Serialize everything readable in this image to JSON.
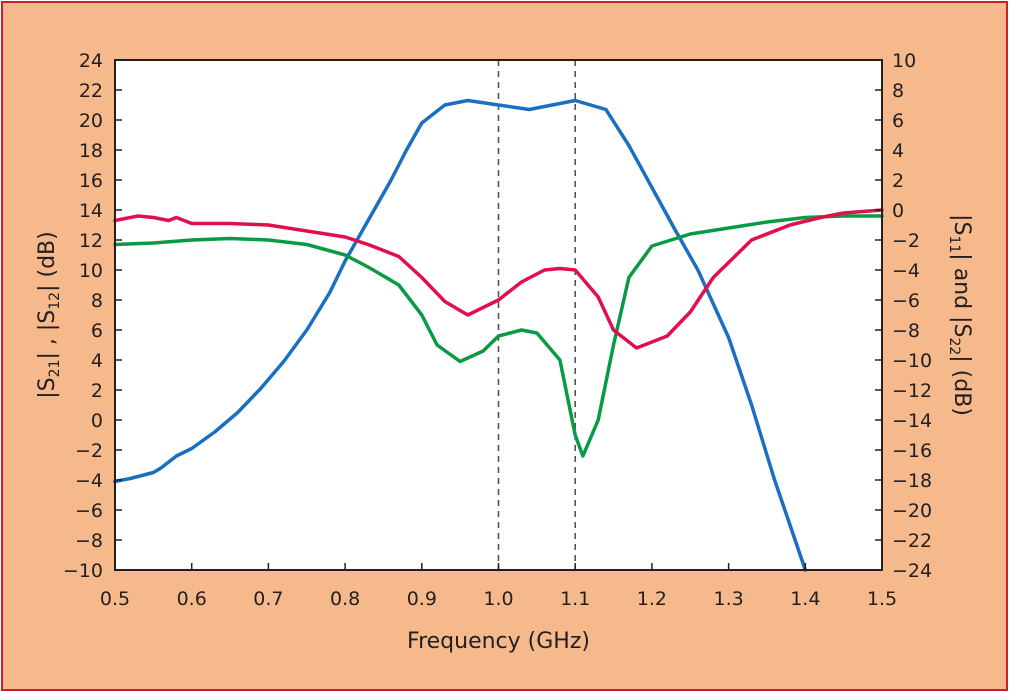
{
  "colors": {
    "background": "#f5b98c",
    "border": "#c8202f",
    "plot_background": "#ffffff",
    "axis": "#231f20",
    "marker_line": "#555555"
  },
  "chart_data": {
    "type": "line",
    "title": "",
    "xlabel": "Frequency (GHz)",
    "ylabel_left": {
      "parts": [
        "|S",
        "21",
        "| , |S",
        "12",
        "| (dB)"
      ]
    },
    "ylabel_right": {
      "parts": [
        "|S",
        "11",
        "| and |S",
        "22",
        "| (dB)"
      ]
    },
    "xlim": [
      0.5,
      1.5
    ],
    "ylim_left": [
      -10,
      24
    ],
    "ylim_right": [
      -24,
      10
    ],
    "x_ticks": [
      0.5,
      0.6,
      0.7,
      0.8,
      0.9,
      1.0,
      1.1,
      1.2,
      1.3,
      1.4,
      1.5
    ],
    "x_tick_labels": [
      "0.5",
      "0.6",
      "0.7",
      "0.8",
      "0.9",
      "1.0",
      "1.1",
      "1.2",
      "1.3",
      "1.4",
      "1.5"
    ],
    "y_left_ticks": [
      24,
      22,
      20,
      18,
      16,
      14,
      12,
      10,
      8,
      6,
      4,
      2,
      0,
      -2,
      -4,
      -6,
      -8,
      -10
    ],
    "y_left_tick_labels": [
      "24",
      "22",
      "20",
      "18",
      "16",
      "14",
      "12",
      "10",
      "8",
      "6",
      "4",
      "2",
      "0",
      "−2",
      "−4",
      "−6",
      "−8",
      "−10"
    ],
    "y_right_ticks": [
      10,
      8,
      6,
      4,
      2,
      0,
      -2,
      -4,
      -6,
      -8,
      -10,
      -12,
      -14,
      -16,
      -18,
      -20,
      -22,
      -24
    ],
    "y_right_tick_labels": [
      "10",
      "8",
      "6",
      "4",
      "2",
      "0",
      "−2",
      "−4",
      "−6",
      "−8",
      "−10",
      "−12",
      "−14",
      "−16",
      "−18",
      "−20",
      "−22",
      "−24"
    ],
    "grid": false,
    "vertical_markers": [
      1.0,
      1.1
    ],
    "series": [
      {
        "color": "#1a6fc0",
        "axis": "left",
        "points": [
          [
            0.5,
            -4.1
          ],
          [
            0.52,
            -3.9
          ],
          [
            0.55,
            -3.5
          ],
          [
            0.56,
            -3.2
          ],
          [
            0.58,
            -2.4
          ],
          [
            0.6,
            -1.9
          ],
          [
            0.63,
            -0.8
          ],
          [
            0.66,
            0.5
          ],
          [
            0.69,
            2.1
          ],
          [
            0.72,
            3.9
          ],
          [
            0.75,
            6.0
          ],
          [
            0.78,
            8.5
          ],
          [
            0.8,
            10.6
          ],
          [
            0.83,
            13.3
          ],
          [
            0.86,
            16.0
          ],
          [
            0.88,
            18.0
          ],
          [
            0.9,
            19.8
          ],
          [
            0.93,
            21.0
          ],
          [
            0.96,
            21.3
          ],
          [
            1.0,
            21.0
          ],
          [
            1.04,
            20.7
          ],
          [
            1.08,
            21.1
          ],
          [
            1.1,
            21.3
          ],
          [
            1.14,
            20.7
          ],
          [
            1.17,
            18.3
          ],
          [
            1.2,
            15.5
          ],
          [
            1.23,
            12.7
          ],
          [
            1.26,
            10.0
          ],
          [
            1.3,
            5.5
          ],
          [
            1.33,
            1.0
          ],
          [
            1.36,
            -4.0
          ],
          [
            1.38,
            -7.0
          ],
          [
            1.4,
            -10.0
          ]
        ]
      },
      {
        "color": "#0a9a45",
        "axis": "left",
        "points": [
          [
            0.5,
            11.7
          ],
          [
            0.55,
            11.8
          ],
          [
            0.6,
            12.0
          ],
          [
            0.65,
            12.1
          ],
          [
            0.7,
            12.0
          ],
          [
            0.75,
            11.7
          ],
          [
            0.8,
            11.0
          ],
          [
            0.83,
            10.2
          ],
          [
            0.87,
            9.0
          ],
          [
            0.9,
            7.0
          ],
          [
            0.92,
            5.0
          ],
          [
            0.95,
            3.9
          ],
          [
            0.98,
            4.6
          ],
          [
            1.0,
            5.6
          ],
          [
            1.03,
            6.0
          ],
          [
            1.05,
            5.8
          ],
          [
            1.08,
            4.0
          ],
          [
            1.1,
            -1.0
          ],
          [
            1.11,
            -2.4
          ],
          [
            1.13,
            0.0
          ],
          [
            1.15,
            5.0
          ],
          [
            1.17,
            9.5
          ],
          [
            1.2,
            11.6
          ],
          [
            1.25,
            12.4
          ],
          [
            1.3,
            12.8
          ],
          [
            1.35,
            13.2
          ],
          [
            1.4,
            13.5
          ],
          [
            1.45,
            13.6
          ],
          [
            1.5,
            13.6
          ]
        ]
      },
      {
        "color": "#e0104c",
        "axis": "right",
        "points": [
          [
            0.5,
            -0.7
          ],
          [
            0.53,
            -0.4
          ],
          [
            0.55,
            -0.5
          ],
          [
            0.57,
            -0.7
          ],
          [
            0.58,
            -0.5
          ],
          [
            0.6,
            -0.9
          ],
          [
            0.65,
            -0.9
          ],
          [
            0.7,
            -1.0
          ],
          [
            0.75,
            -1.4
          ],
          [
            0.8,
            -1.8
          ],
          [
            0.83,
            -2.3
          ],
          [
            0.87,
            -3.1
          ],
          [
            0.9,
            -4.5
          ],
          [
            0.93,
            -6.1
          ],
          [
            0.96,
            -7.0
          ],
          [
            1.0,
            -6.0
          ],
          [
            1.03,
            -4.8
          ],
          [
            1.06,
            -4.0
          ],
          [
            1.08,
            -3.9
          ],
          [
            1.1,
            -4.0
          ],
          [
            1.13,
            -5.8
          ],
          [
            1.15,
            -8.0
          ],
          [
            1.18,
            -9.2
          ],
          [
            1.22,
            -8.4
          ],
          [
            1.25,
            -6.8
          ],
          [
            1.28,
            -4.5
          ],
          [
            1.3,
            -3.5
          ],
          [
            1.33,
            -2.0
          ],
          [
            1.38,
            -1.0
          ],
          [
            1.42,
            -0.5
          ],
          [
            1.45,
            -0.2
          ],
          [
            1.5,
            0.0
          ]
        ]
      }
    ]
  }
}
